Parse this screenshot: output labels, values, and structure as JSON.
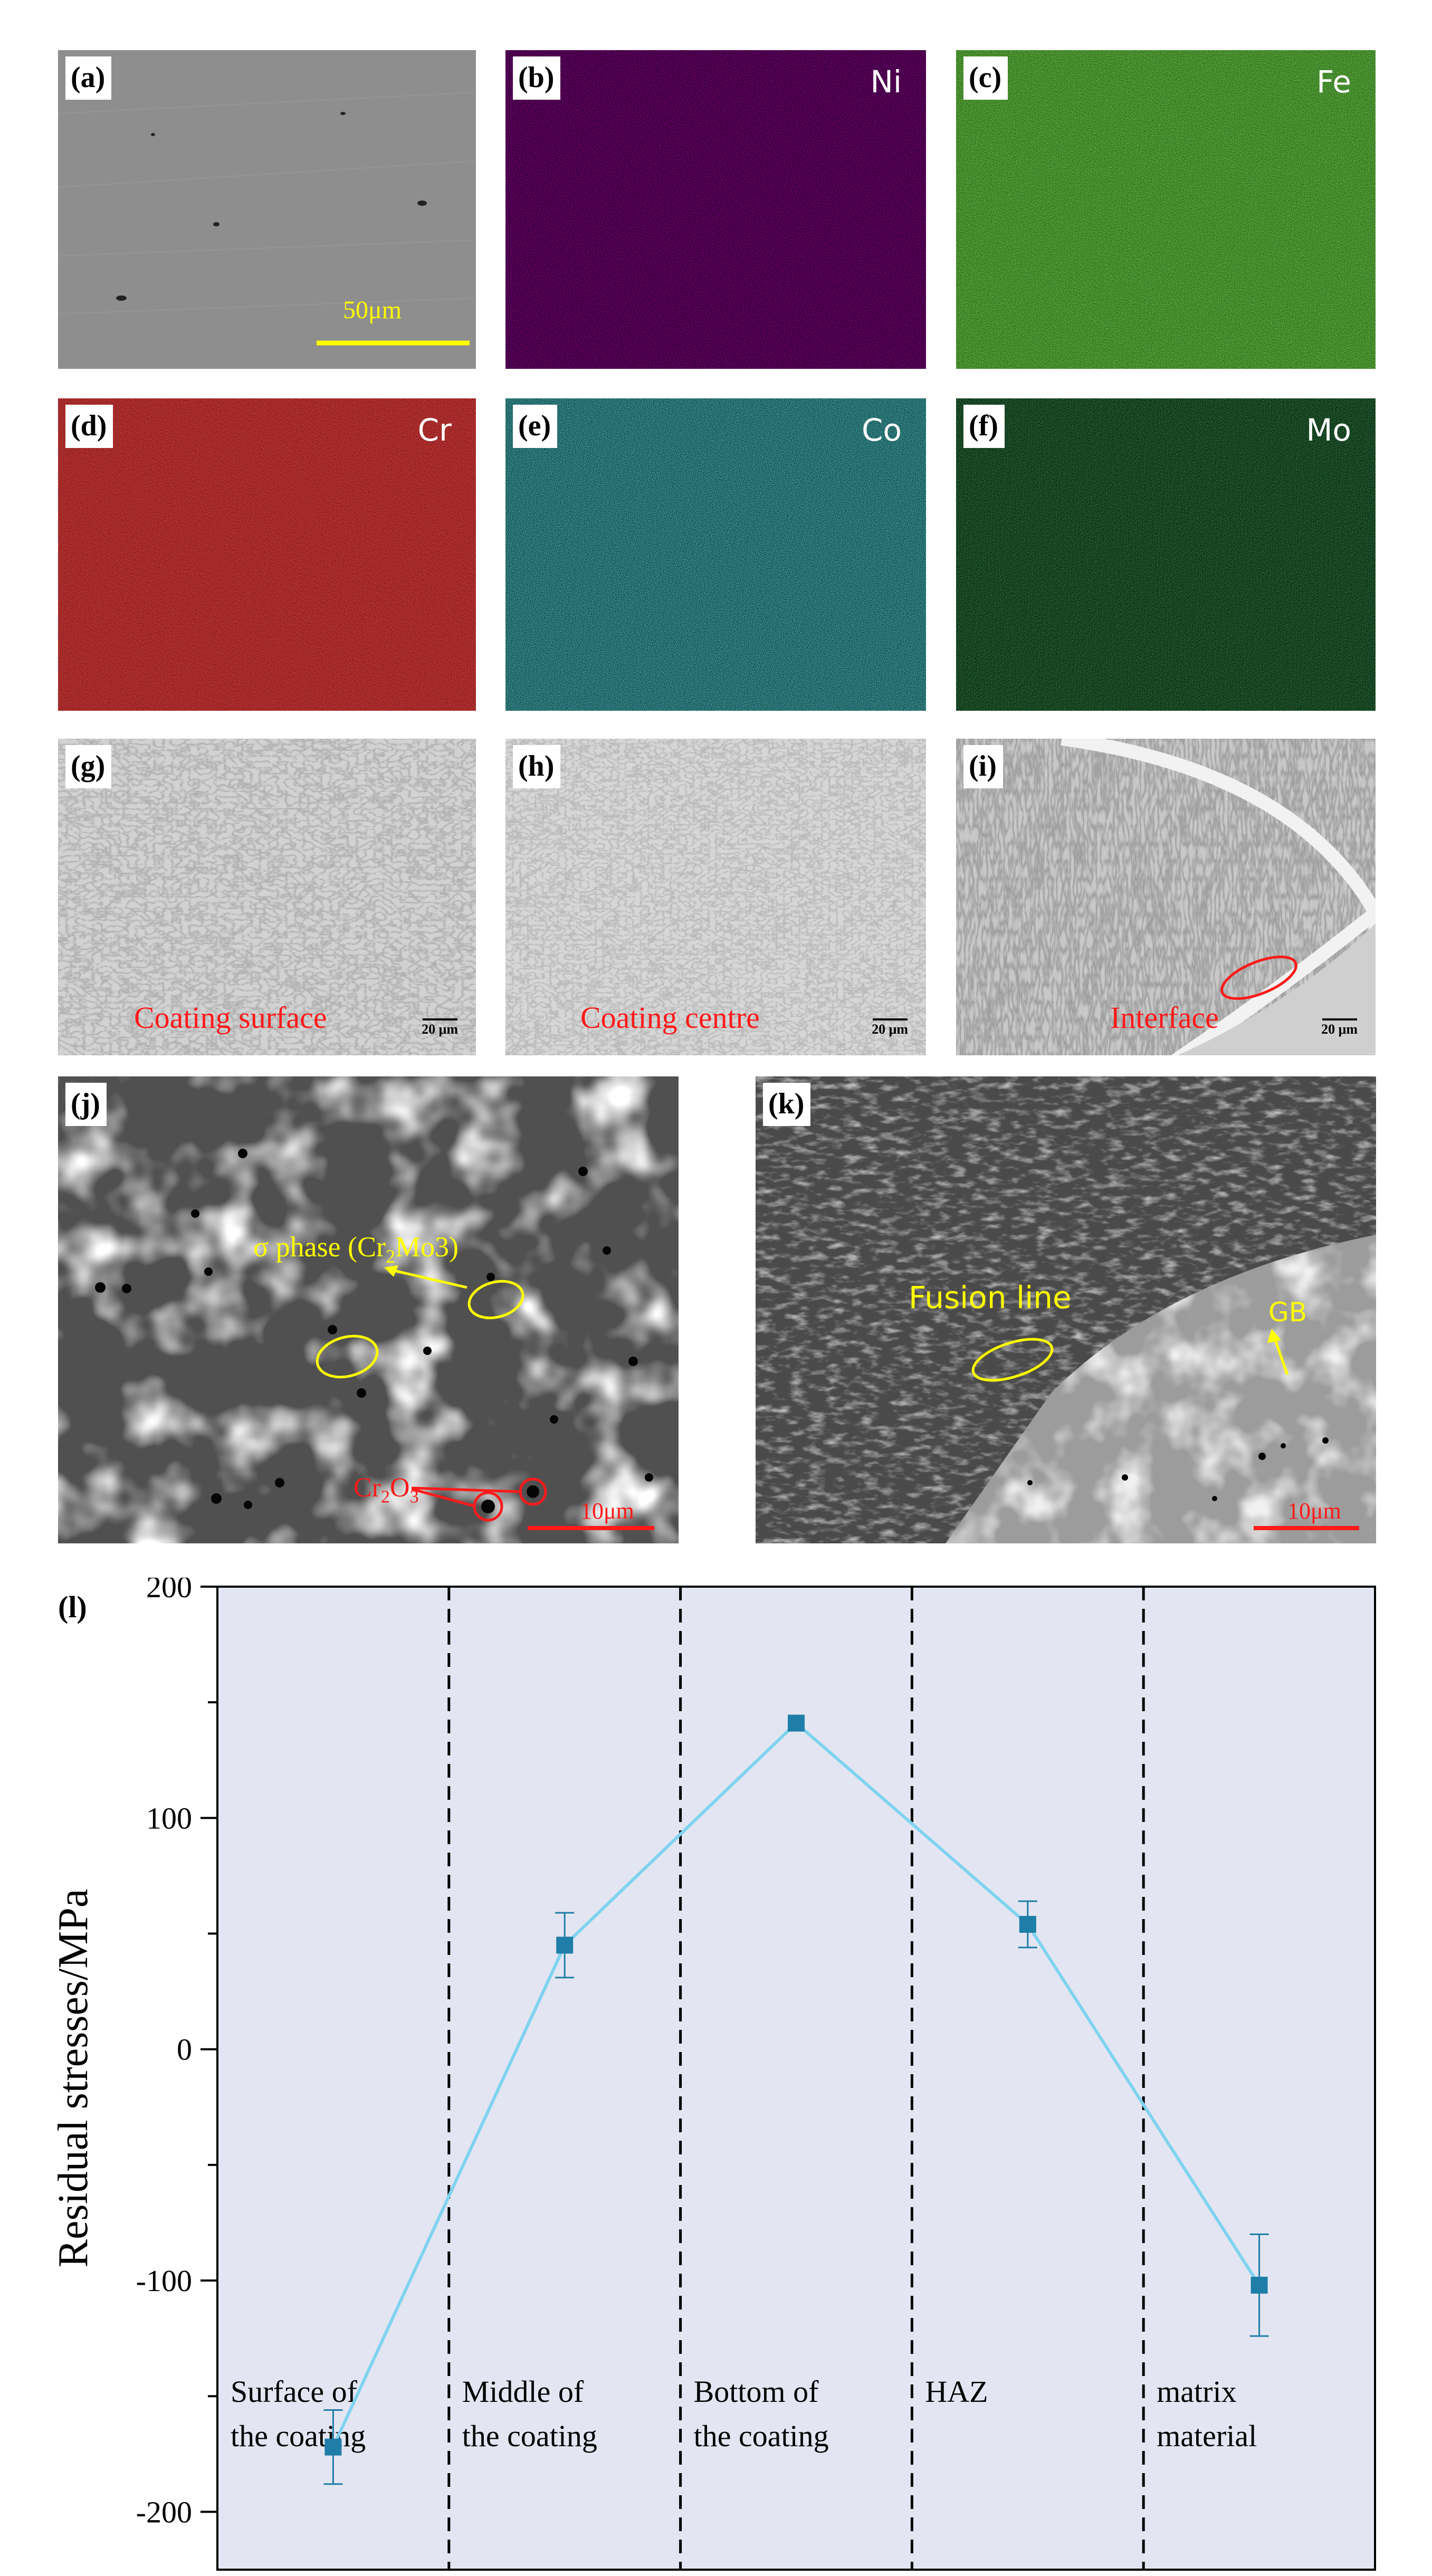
{
  "panels": {
    "a": {
      "label": "(a)",
      "scale": "50μm"
    },
    "b": {
      "label": "(b)",
      "element": "Ni",
      "color": "#b000b8"
    },
    "c": {
      "label": "(c)",
      "element": "Fe",
      "color": "#2ecf10"
    },
    "d": {
      "label": "(d)",
      "element": "Cr",
      "color": "#e81010"
    },
    "e": {
      "label": "(e)",
      "element": "Co",
      "color": "#18c8cc"
    },
    "f": {
      "label": "(f)",
      "element": "Mo",
      "color": "#12a82c"
    },
    "g": {
      "label": "(g)",
      "caption": "Coating surface",
      "scale": "20 μm"
    },
    "h": {
      "label": "(h)",
      "caption": "Coating centre",
      "scale": "20 μm"
    },
    "i": {
      "label": "(i)",
      "caption": "Interface",
      "scale": "20 μm"
    },
    "j": {
      "label": "(j)",
      "sigma_prefix": "σ  phase (Cr",
      "sigma_sub": "2",
      "sigma_suffix": "Mo3)",
      "oxide_a": "Cr",
      "oxide_sub1": "2",
      "oxide_b": "O",
      "oxide_sub2": "3",
      "scale": "10μm"
    },
    "k": {
      "label": "(k)",
      "fusion": "Fusion line",
      "gb": "GB",
      "scale": "10μm"
    }
  },
  "chart_label": "(l)",
  "chart_data": {
    "type": "line",
    "ylabel": "Residual stresses/MPa",
    "ylim": [
      -225,
      200
    ],
    "yticks": [
      -200,
      -100,
      0,
      100,
      200
    ],
    "ytick_labels": [
      "-200",
      "-100",
      "0",
      "100",
      "200"
    ],
    "categories": [
      [
        "Surface of",
        "the coating"
      ],
      [
        "Middle of",
        "the coating"
      ],
      [
        "Bottom of",
        "the coating"
      ],
      [
        "HAZ"
      ],
      [
        "matrix",
        "material"
      ]
    ],
    "values": [
      -172,
      45,
      141,
      54,
      -102
    ],
    "error_low": [
      -188,
      31,
      141,
      44,
      -124
    ],
    "error_high": [
      -156,
      59,
      141,
      64,
      -80
    ],
    "line_color": "#7fd3ef",
    "marker_color": "#1f7ea8",
    "background": "#e3e6f2",
    "grid": false
  }
}
